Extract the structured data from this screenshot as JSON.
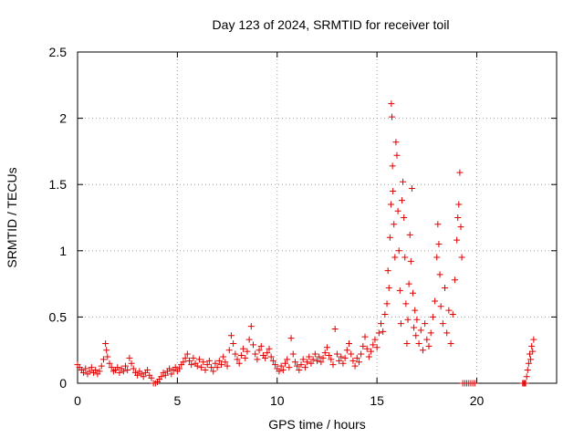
{
  "chart_data": {
    "type": "scatter",
    "title": "Day 123 of 2024, SRMTID for receiver toil",
    "xlabel": "GPS time / hours",
    "ylabel": "SRMTID / TECUs",
    "xlim": [
      0,
      24
    ],
    "ylim": [
      0,
      2.5
    ],
    "xticks": [
      0,
      5,
      10,
      15,
      20
    ],
    "yticks": [
      0,
      0.5,
      1,
      1.5,
      2,
      2.5
    ],
    "xtick_labels": [
      "0",
      "5",
      "10",
      "15",
      "20"
    ],
    "ytick_labels": [
      "0",
      "0.5",
      "1",
      "1.5",
      "2",
      "2.5"
    ],
    "grid": true,
    "marker": "+",
    "color": "#e00000",
    "series": [
      {
        "name": "SRMTID",
        "points": [
          [
            0.0,
            0.14
          ],
          [
            0.1,
            0.12
          ],
          [
            0.2,
            0.1
          ],
          [
            0.3,
            0.08
          ],
          [
            0.4,
            0.11
          ],
          [
            0.5,
            0.07
          ],
          [
            0.6,
            0.09
          ],
          [
            0.7,
            0.12
          ],
          [
            0.8,
            0.08
          ],
          [
            0.9,
            0.1
          ],
          [
            1.0,
            0.07
          ],
          [
            1.1,
            0.09
          ],
          [
            1.2,
            0.13
          ],
          [
            1.3,
            0.18
          ],
          [
            1.4,
            0.3
          ],
          [
            1.45,
            0.25
          ],
          [
            1.5,
            0.2
          ],
          [
            1.6,
            0.15
          ],
          [
            1.7,
            0.12
          ],
          [
            1.8,
            0.09
          ],
          [
            1.9,
            0.1
          ],
          [
            2.0,
            0.12
          ],
          [
            2.1,
            0.08
          ],
          [
            2.2,
            0.11
          ],
          [
            2.3,
            0.09
          ],
          [
            2.4,
            0.13
          ],
          [
            2.5,
            0.1
          ],
          [
            2.6,
            0.19
          ],
          [
            2.7,
            0.15
          ],
          [
            2.8,
            0.11
          ],
          [
            2.9,
            0.08
          ],
          [
            3.0,
            0.06
          ],
          [
            3.1,
            0.09
          ],
          [
            3.2,
            0.07
          ],
          [
            3.3,
            0.05
          ],
          [
            3.4,
            0.08
          ],
          [
            3.5,
            0.1
          ],
          [
            3.6,
            0.06
          ],
          [
            3.7,
            0.04
          ],
          [
            3.8,
            0.0
          ],
          [
            3.9,
            0.0
          ],
          [
            4.0,
            0.01
          ],
          [
            4.1,
            0.03
          ],
          [
            4.2,
            0.05
          ],
          [
            4.3,
            0.08
          ],
          [
            4.4,
            0.06
          ],
          [
            4.5,
            0.09
          ],
          [
            4.6,
            0.11
          ],
          [
            4.7,
            0.07
          ],
          [
            4.8,
            0.1
          ],
          [
            4.9,
            0.12
          ],
          [
            5.0,
            0.09
          ],
          [
            5.1,
            0.11
          ],
          [
            5.2,
            0.14
          ],
          [
            5.3,
            0.16
          ],
          [
            5.4,
            0.19
          ],
          [
            5.5,
            0.22
          ],
          [
            5.6,
            0.17
          ],
          [
            5.7,
            0.14
          ],
          [
            5.8,
            0.19
          ],
          [
            5.9,
            0.15
          ],
          [
            6.0,
            0.13
          ],
          [
            6.1,
            0.18
          ],
          [
            6.2,
            0.12
          ],
          [
            6.3,
            0.16
          ],
          [
            6.4,
            0.1
          ],
          [
            6.5,
            0.14
          ],
          [
            6.6,
            0.17
          ],
          [
            6.7,
            0.12
          ],
          [
            6.8,
            0.09
          ],
          [
            6.9,
            0.15
          ],
          [
            7.0,
            0.12
          ],
          [
            7.1,
            0.17
          ],
          [
            7.2,
            0.14
          ],
          [
            7.3,
            0.2
          ],
          [
            7.4,
            0.16
          ],
          [
            7.5,
            0.13
          ],
          [
            7.6,
            0.25
          ],
          [
            7.7,
            0.36
          ],
          [
            7.8,
            0.3
          ],
          [
            7.9,
            0.22
          ],
          [
            8.0,
            0.18
          ],
          [
            8.1,
            0.15
          ],
          [
            8.2,
            0.21
          ],
          [
            8.3,
            0.26
          ],
          [
            8.4,
            0.19
          ],
          [
            8.5,
            0.24
          ],
          [
            8.6,
            0.33
          ],
          [
            8.7,
            0.43
          ],
          [
            8.8,
            0.29
          ],
          [
            8.9,
            0.22
          ],
          [
            9.0,
            0.18
          ],
          [
            9.1,
            0.25
          ],
          [
            9.2,
            0.28
          ],
          [
            9.3,
            0.21
          ],
          [
            9.4,
            0.19
          ],
          [
            9.5,
            0.23
          ],
          [
            9.6,
            0.26
          ],
          [
            9.7,
            0.2
          ],
          [
            9.8,
            0.17
          ],
          [
            9.9,
            0.14
          ],
          [
            10.0,
            0.11
          ],
          [
            10.1,
            0.09
          ],
          [
            10.2,
            0.13
          ],
          [
            10.3,
            0.1
          ],
          [
            10.4,
            0.15
          ],
          [
            10.5,
            0.18
          ],
          [
            10.6,
            0.12
          ],
          [
            10.7,
            0.34
          ],
          [
            10.8,
            0.22
          ],
          [
            10.9,
            0.16
          ],
          [
            11.0,
            0.13
          ],
          [
            11.1,
            0.1
          ],
          [
            11.2,
            0.14
          ],
          [
            11.3,
            0.18
          ],
          [
            11.4,
            0.12
          ],
          [
            11.5,
            0.16
          ],
          [
            11.6,
            0.2
          ],
          [
            11.7,
            0.15
          ],
          [
            11.8,
            0.18
          ],
          [
            11.9,
            0.22
          ],
          [
            12.0,
            0.17
          ],
          [
            12.1,
            0.2
          ],
          [
            12.2,
            0.16
          ],
          [
            12.3,
            0.19
          ],
          [
            12.4,
            0.23
          ],
          [
            12.5,
            0.27
          ],
          [
            12.6,
            0.21
          ],
          [
            12.7,
            0.18
          ],
          [
            12.8,
            0.14
          ],
          [
            12.9,
            0.41
          ],
          [
            13.0,
            0.22
          ],
          [
            13.1,
            0.17
          ],
          [
            13.2,
            0.2
          ],
          [
            13.3,
            0.15
          ],
          [
            13.4,
            0.19
          ],
          [
            13.5,
            0.25
          ],
          [
            13.6,
            0.3
          ],
          [
            13.7,
            0.22
          ],
          [
            13.8,
            0.17
          ],
          [
            13.9,
            0.13
          ],
          [
            14.0,
            0.19
          ],
          [
            14.1,
            0.16
          ],
          [
            14.2,
            0.22
          ],
          [
            14.3,
            0.28
          ],
          [
            14.4,
            0.35
          ],
          [
            14.5,
            0.26
          ],
          [
            14.6,
            0.2
          ],
          [
            14.7,
            0.24
          ],
          [
            14.8,
            0.29
          ],
          [
            14.9,
            0.33
          ],
          [
            15.0,
            0.27
          ],
          [
            15.1,
            0.38
          ],
          [
            15.2,
            0.45
          ],
          [
            15.3,
            0.39
          ],
          [
            15.4,
            0.52
          ],
          [
            15.5,
            0.6
          ],
          [
            15.55,
            0.85
          ],
          [
            15.6,
            0.72
          ],
          [
            15.65,
            1.1
          ],
          [
            15.7,
            1.35
          ],
          [
            15.72,
            2.11
          ],
          [
            15.75,
            2.01
          ],
          [
            15.78,
            1.64
          ],
          [
            15.8,
            1.45
          ],
          [
            15.85,
            1.2
          ],
          [
            15.9,
            0.95
          ],
          [
            15.95,
            1.82
          ],
          [
            16.0,
            1.72
          ],
          [
            16.05,
            1.3
          ],
          [
            16.1,
            1.0
          ],
          [
            16.15,
            0.7
          ],
          [
            16.2,
            0.45
          ],
          [
            16.25,
            1.38
          ],
          [
            16.3,
            1.52
          ],
          [
            16.35,
            1.25
          ],
          [
            16.4,
            0.95
          ],
          [
            16.45,
            0.6
          ],
          [
            16.5,
            0.3
          ],
          [
            16.55,
            0.48
          ],
          [
            16.6,
            0.75
          ],
          [
            16.65,
            1.12
          ],
          [
            16.7,
            0.92
          ],
          [
            16.75,
            1.47
          ],
          [
            16.8,
            0.68
          ],
          [
            16.85,
            0.42
          ],
          [
            16.9,
            0.55
          ],
          [
            16.95,
            0.36
          ],
          [
            17.0,
            0.48
          ],
          [
            17.1,
            0.3
          ],
          [
            17.2,
            0.4
          ],
          [
            17.3,
            0.25
          ],
          [
            17.4,
            0.45
          ],
          [
            17.5,
            0.33
          ],
          [
            17.6,
            0.28
          ],
          [
            17.7,
            0.38
          ],
          [
            17.8,
            0.5
          ],
          [
            17.9,
            0.62
          ],
          [
            18.0,
            0.95
          ],
          [
            18.05,
            1.2
          ],
          [
            18.1,
            1.05
          ],
          [
            18.15,
            0.82
          ],
          [
            18.2,
            0.58
          ],
          [
            18.3,
            0.45
          ],
          [
            18.4,
            0.72
          ],
          [
            18.5,
            0.38
          ],
          [
            18.6,
            0.55
          ],
          [
            18.7,
            0.3
          ],
          [
            18.8,
            0.52
          ],
          [
            18.9,
            0.78
          ],
          [
            19.0,
            1.08
          ],
          [
            19.05,
            1.25
          ],
          [
            19.1,
            1.35
          ],
          [
            19.15,
            1.59
          ],
          [
            19.2,
            1.18
          ],
          [
            19.25,
            0.95
          ],
          [
            19.3,
            0.0
          ],
          [
            19.4,
            0.0
          ],
          [
            19.5,
            0.0
          ],
          [
            19.6,
            0.0
          ],
          [
            19.7,
            0.0
          ],
          [
            19.8,
            0.0
          ],
          [
            19.9,
            0.0
          ],
          [
            22.3,
            0.0
          ],
          [
            22.35,
            0.0
          ],
          [
            22.4,
            0.0
          ],
          [
            22.45,
            0.0
          ],
          [
            22.5,
            0.05
          ],
          [
            22.55,
            0.1
          ],
          [
            22.6,
            0.15
          ],
          [
            22.65,
            0.22
          ],
          [
            22.7,
            0.18
          ],
          [
            22.75,
            0.28
          ],
          [
            22.8,
            0.24
          ],
          [
            22.85,
            0.33
          ]
        ]
      }
    ]
  }
}
